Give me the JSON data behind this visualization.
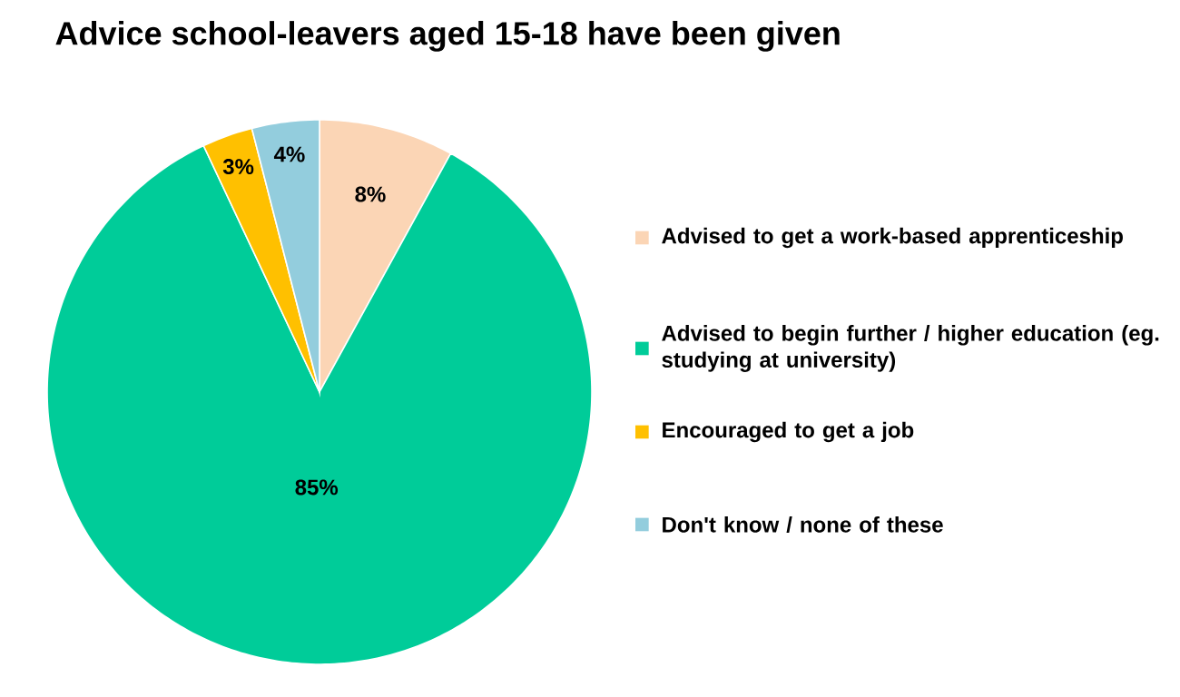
{
  "chart_data": {
    "type": "pie",
    "title": "Advice school-leavers aged 15-18 have been given",
    "categories": [
      "Advised to get a work-based apprenticeship",
      "Advised to begin further / higher education (eg. studying at university)",
      "Encouraged to get a job",
      "Don't know / none of these"
    ],
    "values": [
      8,
      85,
      3,
      4
    ],
    "colors": [
      "#fbd5b5",
      "#00cc99",
      "#ffc000",
      "#93cddd"
    ],
    "value_labels": [
      "8%",
      "85%",
      "3%",
      "4%"
    ],
    "legend": "right"
  }
}
